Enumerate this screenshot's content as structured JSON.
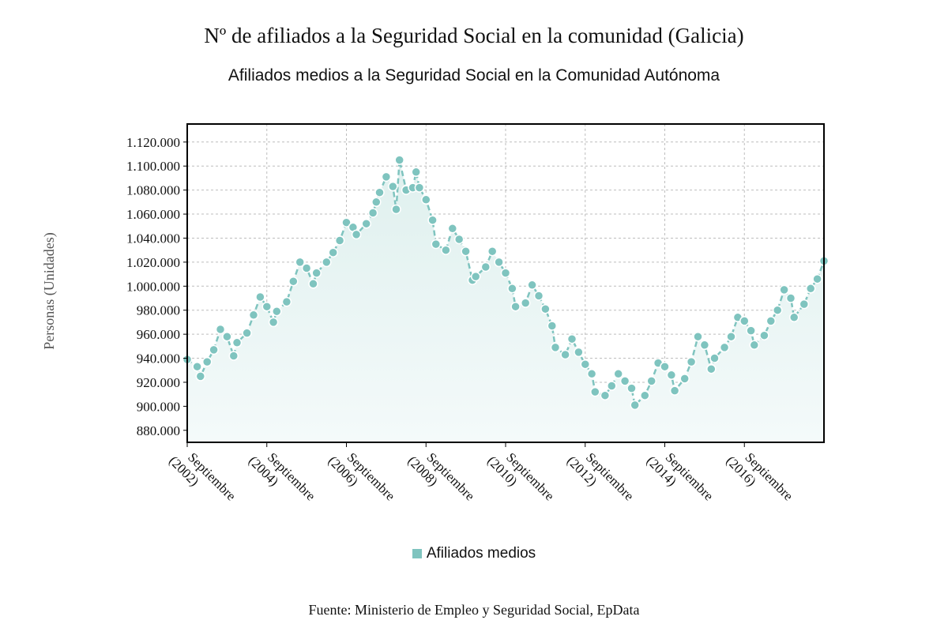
{
  "title": "Nº de afiliados a la Seguridad Social en la comunidad (Galicia)",
  "subtitle": "Afiliados medios a la Seguridad Social en la Comunidad Autónoma",
  "source": "Fuente: Ministerio de Empleo y Seguridad Social, EpData",
  "colors": {
    "series": "#7fc4bf",
    "area_top": "#dff0ee",
    "area_bottom": "#f4fafa"
  },
  "chart_data": {
    "type": "area",
    "title": "Afiliados medios a la Seguridad Social en la Comunidad Autónoma",
    "xlabel": "",
    "ylabel": "Personas (Unidades)",
    "ylim": [
      870000,
      1135000
    ],
    "y_ticks": [
      880000,
      900000,
      920000,
      940000,
      960000,
      980000,
      1000000,
      1020000,
      1040000,
      1060000,
      1080000,
      1100000,
      1120000
    ],
    "y_tick_labels": [
      "880.000",
      "900.000",
      "920.000",
      "940.000",
      "960.000",
      "980.000",
      "1.000.000",
      "1.020.000",
      "1.040.000",
      "1.060.000",
      "1.080.000",
      "1.100.000",
      "1.120.000"
    ],
    "x_range": [
      "2002-09",
      "2018-09"
    ],
    "x_ticks": [
      "2002-09",
      "2004-09",
      "2006-09",
      "2008-09",
      "2010-09",
      "2012-09",
      "2014-09",
      "2016-09"
    ],
    "x_tick_labels": [
      [
        "Septiembre",
        "(2002)"
      ],
      [
        "Septiembre",
        "(2004)"
      ],
      [
        "Septiembre",
        "(2006)"
      ],
      [
        "Septiembre",
        "(2008)"
      ],
      [
        "Septiembre",
        "(2010)"
      ],
      [
        "Septiembre",
        "(2012)"
      ],
      [
        "Septiembre",
        "(2014)"
      ],
      [
        "Septiembre",
        "(2016)"
      ]
    ],
    "grid": true,
    "legend_position": "bottom",
    "series": [
      {
        "name": "Afiliados medios",
        "x": [
          "2002-09",
          "2002-12",
          "2003-01",
          "2003-03",
          "2003-05",
          "2003-07",
          "2003-09",
          "2003-11",
          "2003-12",
          "2004-03",
          "2004-05",
          "2004-07",
          "2004-09",
          "2004-11",
          "2004-12",
          "2005-03",
          "2005-05",
          "2005-07",
          "2005-09",
          "2005-11",
          "2005-12",
          "2006-03",
          "2006-05",
          "2006-07",
          "2006-09",
          "2006-11",
          "2006-12",
          "2007-03",
          "2007-05",
          "2007-06",
          "2007-07",
          "2007-09",
          "2007-11",
          "2007-12",
          "2008-01",
          "2008-03",
          "2008-05",
          "2008-06",
          "2008-07",
          "2008-09",
          "2008-11",
          "2008-12",
          "2009-03",
          "2009-05",
          "2009-07",
          "2009-09",
          "2009-11",
          "2009-12",
          "2010-03",
          "2010-05",
          "2010-07",
          "2010-09",
          "2010-11",
          "2010-12",
          "2011-03",
          "2011-05",
          "2011-07",
          "2011-09",
          "2011-11",
          "2011-12",
          "2012-03",
          "2012-05",
          "2012-07",
          "2012-09",
          "2012-11",
          "2012-12",
          "2013-03",
          "2013-05",
          "2013-07",
          "2013-09",
          "2013-11",
          "2013-12",
          "2014-03",
          "2014-05",
          "2014-07",
          "2014-09",
          "2014-11",
          "2014-12",
          "2015-03",
          "2015-05",
          "2015-07",
          "2015-09",
          "2015-11",
          "2015-12",
          "2016-03",
          "2016-05",
          "2016-07",
          "2016-09",
          "2016-11",
          "2016-12",
          "2017-03",
          "2017-05",
          "2017-07",
          "2017-09",
          "2017-11",
          "2017-12",
          "2018-03",
          "2018-05",
          "2018-07",
          "2018-09"
        ],
        "values": [
          939000,
          933000,
          925000,
          937000,
          947000,
          964000,
          958000,
          942000,
          953000,
          961000,
          976000,
          991000,
          983000,
          970000,
          979000,
          987000,
          1004000,
          1020000,
          1015000,
          1002000,
          1011000,
          1020000,
          1028000,
          1038000,
          1053000,
          1049000,
          1043000,
          1052000,
          1061000,
          1070000,
          1078000,
          1091000,
          1083000,
          1064000,
          1105000,
          1080000,
          1082000,
          1095000,
          1082000,
          1072000,
          1055000,
          1035000,
          1030000,
          1048000,
          1039000,
          1029000,
          1005000,
          1008000,
          1016000,
          1029000,
          1020000,
          1011000,
          998000,
          983000,
          986000,
          1001000,
          992000,
          981000,
          967000,
          949000,
          943000,
          956000,
          945000,
          935000,
          927000,
          912000,
          909000,
          917000,
          927000,
          921000,
          915000,
          901000,
          909000,
          921000,
          936000,
          933000,
          926000,
          913000,
          923000,
          937000,
          958000,
          951000,
          931000,
          940000,
          949000,
          958000,
          974000,
          971000,
          963000,
          951000,
          959000,
          971000,
          980000,
          997000,
          990000,
          974000,
          985000,
          998000,
          1006000,
          1021000
        ]
      }
    ]
  }
}
